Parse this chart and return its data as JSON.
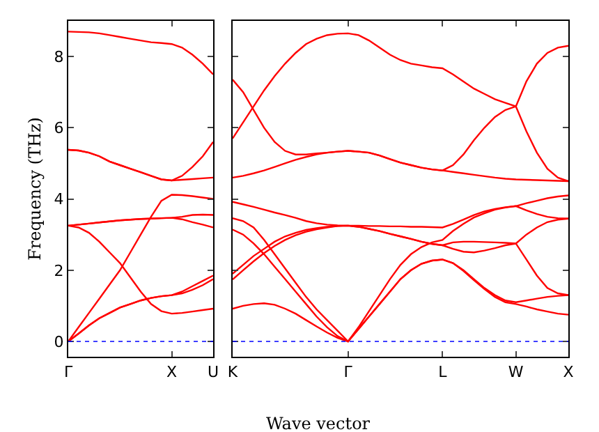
{
  "chart_data": [
    {
      "type": "line",
      "ylabel": "Frequency (THz)",
      "categories": [
        "Γ",
        null,
        null,
        null,
        null,
        null,
        null,
        null,
        null,
        null,
        "X",
        null,
        null,
        null,
        "U"
      ],
      "ylim": [
        -0.43,
        9.0
      ],
      "yticks": [
        0,
        2,
        4,
        6,
        8
      ],
      "ref_lines": [
        {
          "axis": "y",
          "value": 0,
          "color": "#0000ff",
          "line_style": "dotted"
        }
      ],
      "series": [
        {
          "color": "#ff0000",
          "values": [
            8.7,
            8.69,
            8.68,
            8.65,
            8.6,
            8.55,
            8.5,
            8.45,
            8.4,
            8.38,
            8.35,
            8.25,
            8.05,
            7.8,
            7.5
          ]
        },
        {
          "color": "#ff0000",
          "values": [
            5.38,
            5.36,
            5.3,
            5.2,
            5.05,
            4.95,
            4.85,
            4.75,
            4.65,
            4.55,
            4.52,
            4.54,
            4.56,
            4.58,
            4.6
          ]
        },
        {
          "color": "#ff0000",
          "values": [
            5.38,
            5.36,
            5.3,
            5.2,
            5.05,
            4.95,
            4.85,
            4.75,
            4.65,
            4.55,
            4.52,
            4.65,
            4.9,
            5.2,
            5.6
          ]
        },
        {
          "color": "#ff0000",
          "values": [
            0,
            0.4,
            0.8,
            1.2,
            1.6,
            2.0,
            2.5,
            3.0,
            3.5,
            3.95,
            4.12,
            4.11,
            4.08,
            4.04,
            4.0
          ]
        },
        {
          "color": "#ff0000",
          "values": [
            3.25,
            3.28,
            3.31,
            3.34,
            3.37,
            3.4,
            3.42,
            3.44,
            3.45,
            3.46,
            3.47,
            3.5,
            3.55,
            3.56,
            3.55
          ]
        },
        {
          "color": "#ff0000",
          "values": [
            3.25,
            3.28,
            3.31,
            3.34,
            3.37,
            3.4,
            3.42,
            3.44,
            3.45,
            3.46,
            3.47,
            3.43,
            3.35,
            3.28,
            3.2
          ]
        },
        {
          "color": "#ff0000",
          "values": [
            3.25,
            3.2,
            3.05,
            2.8,
            2.5,
            2.2,
            1.8,
            1.4,
            1.05,
            0.85,
            0.78,
            0.8,
            0.84,
            0.88,
            0.92
          ]
        },
        {
          "color": "#ff0000",
          "values": [
            0,
            0.22,
            0.45,
            0.65,
            0.8,
            0.95,
            1.05,
            1.15,
            1.22,
            1.27,
            1.3,
            1.4,
            1.55,
            1.7,
            1.85
          ]
        },
        {
          "color": "#ff0000",
          "values": [
            0,
            0.22,
            0.45,
            0.65,
            0.8,
            0.95,
            1.05,
            1.15,
            1.22,
            1.27,
            1.3,
            1.35,
            1.45,
            1.58,
            1.75
          ]
        }
      ]
    },
    {
      "type": "line",
      "xlabel": "Wave vector",
      "tick_labels": "x",
      "categories": [
        "K",
        null,
        null,
        null,
        null,
        null,
        null,
        null,
        null,
        null,
        null,
        "Γ",
        null,
        null,
        null,
        null,
        null,
        null,
        null,
        null,
        "L",
        null,
        null,
        null,
        null,
        null,
        null,
        "W",
        null,
        null,
        null,
        null,
        "X"
      ],
      "ylim": [
        -0.43,
        9.0
      ],
      "yticks": [
        0,
        2,
        4,
        6,
        8
      ],
      "ref_lines": [
        {
          "axis": "y",
          "value": 0,
          "color": "#0000ff",
          "line_style": "dotted"
        }
      ],
      "series": [
        {
          "color": "#ff0000",
          "values": [
            5.7,
            6.15,
            6.6,
            7.05,
            7.45,
            7.8,
            8.1,
            8.35,
            8.5,
            8.6,
            8.64,
            8.65,
            8.6,
            8.45,
            8.25,
            8.05,
            7.9,
            7.8,
            7.75,
            7.7,
            7.67,
            7.5,
            7.3,
            7.1,
            6.95,
            6.8,
            6.7,
            6.6,
            7.3,
            7.8,
            8.1,
            8.25,
            8.3
          ]
        },
        {
          "color": "#ff0000",
          "values": [
            7.35,
            7.0,
            6.5,
            6.0,
            5.6,
            5.35,
            5.25,
            5.25,
            5.28,
            5.3,
            5.33,
            5.35,
            5.33,
            5.3,
            5.22,
            5.12,
            5.02,
            4.95,
            4.88,
            4.83,
            4.8,
            4.95,
            5.25,
            5.65,
            6.0,
            6.3,
            6.5,
            6.6,
            5.9,
            5.3,
            4.85,
            4.6,
            4.5
          ]
        },
        {
          "color": "#ff0000",
          "values": [
            4.6,
            4.65,
            4.72,
            4.8,
            4.9,
            5.0,
            5.1,
            5.18,
            5.25,
            5.3,
            5.33,
            5.35,
            5.33,
            5.3,
            5.22,
            5.12,
            5.02,
            4.95,
            4.88,
            4.83,
            4.8,
            4.76,
            4.72,
            4.68,
            4.64,
            4.6,
            4.57,
            4.55,
            4.54,
            4.53,
            4.52,
            4.51,
            4.5
          ]
        },
        {
          "color": "#ff0000",
          "values": [
            3.92,
            3.85,
            3.78,
            3.7,
            3.62,
            3.55,
            3.47,
            3.38,
            3.32,
            3.28,
            3.26,
            3.25,
            3.25,
            3.24,
            3.24,
            3.23,
            3.23,
            3.22,
            3.22,
            3.21,
            3.2,
            3.3,
            3.42,
            3.55,
            3.65,
            3.72,
            3.77,
            3.8,
            3.88,
            3.95,
            4.02,
            4.07,
            4.1
          ]
        },
        {
          "color": "#ff0000",
          "values": [
            3.46,
            3.38,
            3.2,
            2.85,
            2.45,
            2.05,
            1.65,
            1.25,
            0.9,
            0.6,
            0.3,
            0,
            0.4,
            0.85,
            1.3,
            1.75,
            2.15,
            2.45,
            2.65,
            2.78,
            2.85,
            3.1,
            3.3,
            3.48,
            3.6,
            3.7,
            3.76,
            3.8,
            3.68,
            3.58,
            3.5,
            3.46,
            3.45
          ]
        },
        {
          "color": "#ff0000",
          "values": [
            3.14,
            3.0,
            2.75,
            2.45,
            2.1,
            1.75,
            1.4,
            1.05,
            0.7,
            0.4,
            0.15,
            0,
            0.35,
            0.7,
            1.05,
            1.4,
            1.75,
            2.0,
            2.18,
            2.27,
            2.3,
            2.2,
            2.0,
            1.75,
            1.5,
            1.3,
            1.15,
            1.1,
            1.15,
            1.2,
            1.25,
            1.28,
            1.3
          ]
        },
        {
          "color": "#ff0000",
          "values": [
            0.92,
            1.0,
            1.05,
            1.07,
            1.03,
            0.92,
            0.78,
            0.6,
            0.42,
            0.25,
            0.1,
            0,
            0.35,
            0.7,
            1.05,
            1.4,
            1.75,
            2.0,
            2.18,
            2.27,
            2.3,
            2.2,
            1.98,
            1.72,
            1.47,
            1.25,
            1.1,
            1.05,
            0.98,
            0.9,
            0.84,
            0.78,
            0.75
          ]
        },
        {
          "color": "#ff0000",
          "values": [
            1.9,
            2.15,
            2.4,
            2.6,
            2.8,
            2.95,
            3.05,
            3.13,
            3.18,
            3.22,
            3.24,
            3.25,
            3.22,
            3.16,
            3.1,
            3.02,
            2.95,
            2.88,
            2.8,
            2.74,
            2.7,
            2.78,
            2.8,
            2.8,
            2.79,
            2.78,
            2.77,
            2.75,
            3.0,
            3.2,
            3.35,
            3.42,
            3.45
          ]
        },
        {
          "color": "#ff0000",
          "values": [
            1.74,
            2.0,
            2.25,
            2.48,
            2.68,
            2.85,
            2.98,
            3.08,
            3.15,
            3.2,
            3.24,
            3.25,
            3.22,
            3.16,
            3.1,
            3.02,
            2.95,
            2.88,
            2.8,
            2.74,
            2.7,
            2.6,
            2.52,
            2.5,
            2.55,
            2.62,
            2.7,
            2.75,
            2.3,
            1.85,
            1.5,
            1.35,
            1.3
          ]
        }
      ]
    }
  ]
}
